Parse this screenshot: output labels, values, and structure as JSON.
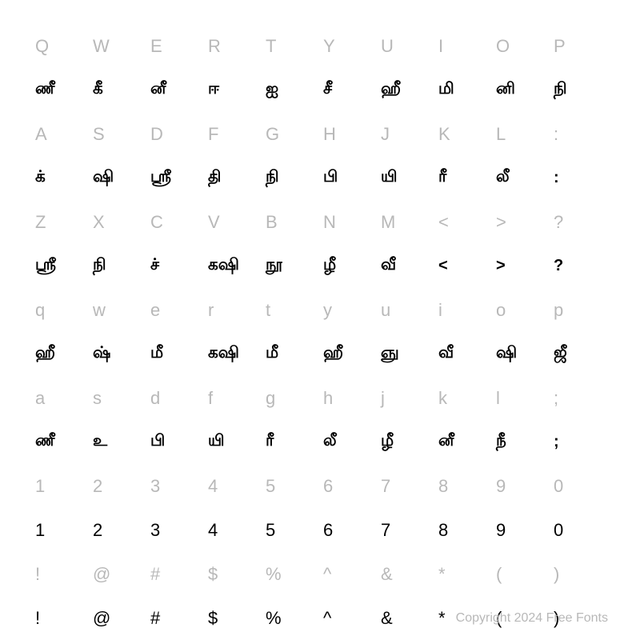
{
  "copyright": "Copyright 2024 Free Fonts",
  "grid": {
    "background_color": "#ffffff",
    "key_label_color": "#b8b8b8",
    "glyph_color": "#000000",
    "key_fontsize": 22,
    "glyph_fontsize": 20,
    "cols": 10,
    "rows": [
      {
        "type": "key",
        "cells": [
          "Q",
          "W",
          "E",
          "R",
          "T",
          "Y",
          "U",
          "I",
          "O",
          "P"
        ]
      },
      {
        "type": "glyph",
        "cells": [
          "ணீ",
          "கீ",
          "னீ",
          "ஈ",
          "ஐ",
          "சீ",
          "ஹீ",
          "மி",
          "னி",
          "நி"
        ]
      },
      {
        "type": "key",
        "cells": [
          "A",
          "S",
          "D",
          "F",
          "G",
          "H",
          "J",
          "K",
          "L",
          ":"
        ]
      },
      {
        "type": "glyph",
        "cells": [
          "க்",
          "ஷி",
          "ஸ்ரீ",
          "தி",
          "நி",
          "பி",
          "யி",
          "ரீ",
          "லீ",
          ":"
        ]
      },
      {
        "type": "key",
        "cells": [
          "Z",
          "X",
          "C",
          "V",
          "B",
          "N",
          "M",
          "<",
          ">",
          "?"
        ]
      },
      {
        "type": "glyph",
        "cells": [
          "ஸ்ரீ",
          "நி",
          "ச்",
          "கஷி",
          "நூ",
          "ழீ",
          "வீ",
          "<",
          ">",
          "?"
        ]
      },
      {
        "type": "key",
        "cells": [
          "q",
          "w",
          "e",
          "r",
          "t",
          "y",
          "u",
          "i",
          "o",
          "p"
        ]
      },
      {
        "type": "glyph",
        "cells": [
          "ஹீ",
          "ஷ்",
          "மீ",
          "கஷி",
          "மீ",
          "ஹீ",
          "ஞு",
          "வீ",
          "ஷி",
          "ஜீ"
        ]
      },
      {
        "type": "key",
        "cells": [
          "a",
          "s",
          "d",
          "f",
          "g",
          "h",
          "j",
          "k",
          "l",
          ";"
        ]
      },
      {
        "type": "glyph",
        "cells": [
          "ணீ",
          "உ",
          "பி",
          "யி",
          "ரீ",
          "லீ",
          "ழீ",
          "னீ",
          "நீ",
          ";"
        ]
      },
      {
        "type": "key",
        "cells": [
          "1",
          "2",
          "3",
          "4",
          "5",
          "6",
          "7",
          "8",
          "9",
          "0"
        ]
      },
      {
        "type": "plain",
        "cells": [
          "1",
          "2",
          "3",
          "4",
          "5",
          "6",
          "7",
          "8",
          "9",
          "0"
        ]
      },
      {
        "type": "key",
        "cells": [
          "!",
          "@",
          "#",
          "$",
          "%",
          "^",
          "&",
          "*",
          "(",
          ")"
        ]
      },
      {
        "type": "plain",
        "cells": [
          "!",
          "@",
          "#",
          "$",
          "%",
          "^",
          "&",
          "*",
          "(",
          ")"
        ]
      }
    ]
  }
}
